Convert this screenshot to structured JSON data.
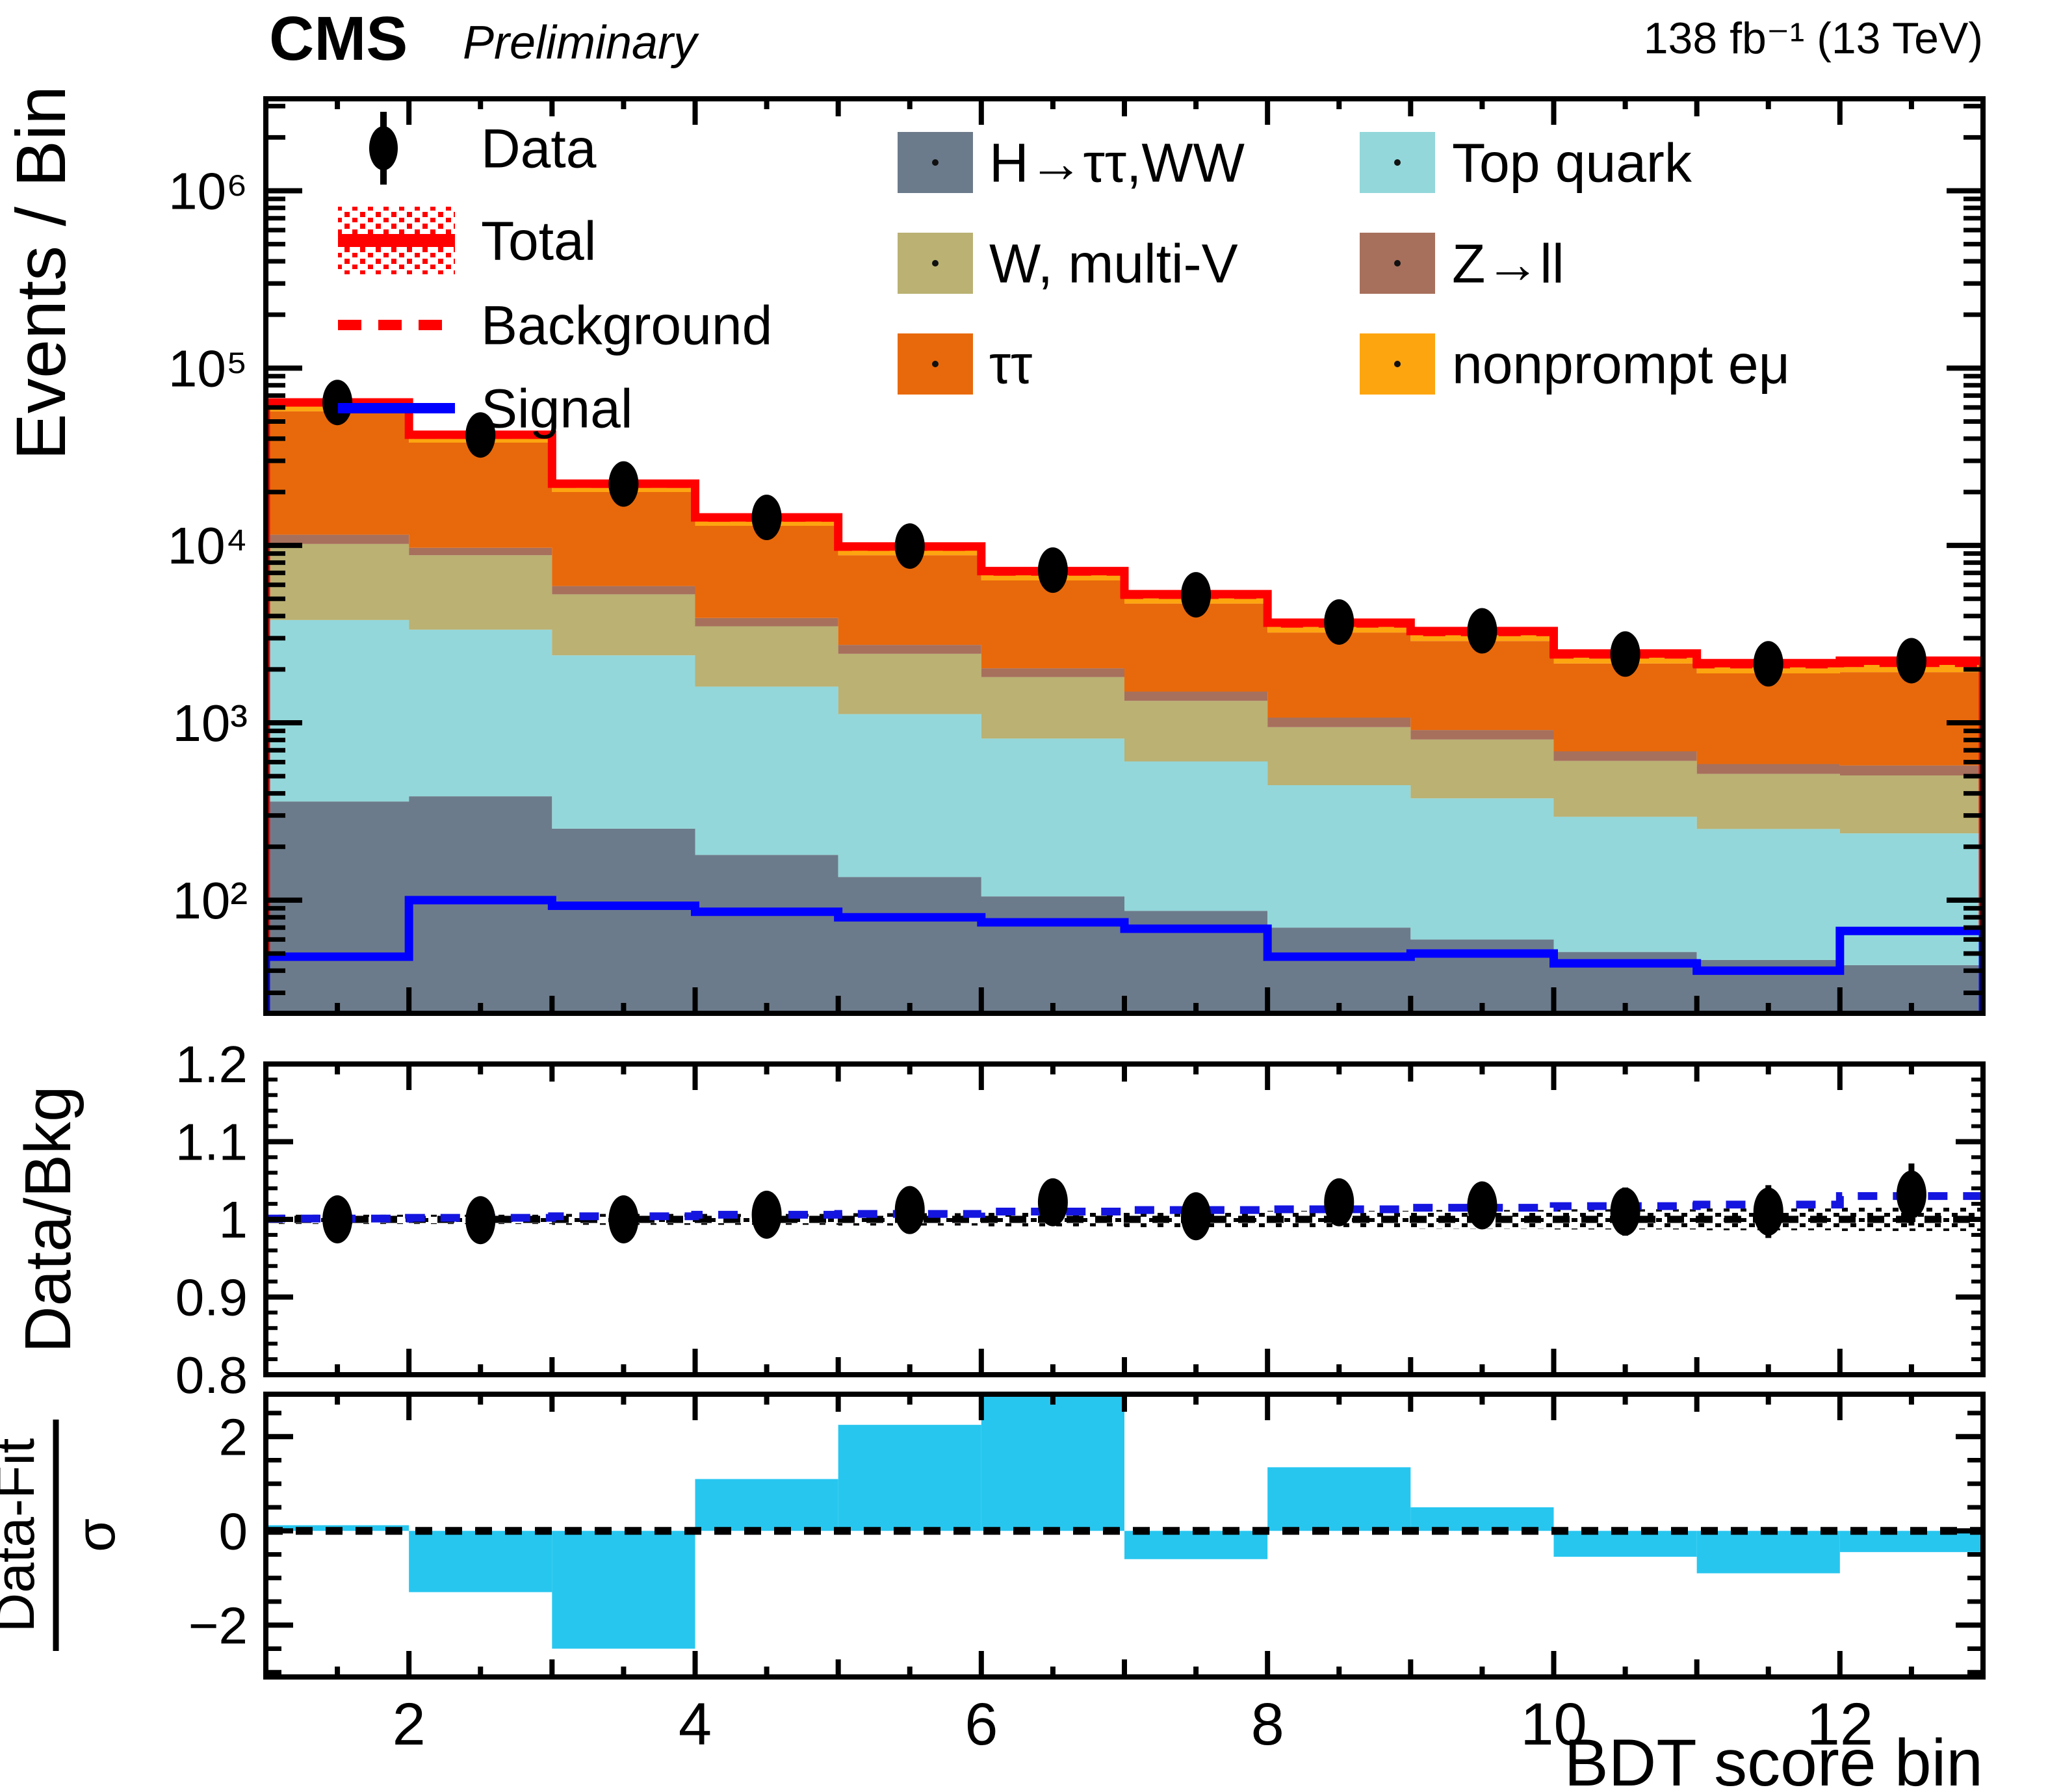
{
  "header": {
    "experiment": "CMS",
    "status": "Preliminary",
    "lumi": "138 fb⁻¹ (13 TeV)"
  },
  "axis_titles": {
    "main_y": "Events / Bin",
    "ratio_y": "Data/Bkg",
    "pull_y_num": "Data-Fit",
    "pull_y_den": "σ",
    "x": "BDT score bin"
  },
  "legend": {
    "data": "Data",
    "total": "Total",
    "background": "Background",
    "signal": "Signal"
  },
  "chart_data": {
    "type": "stacked-step-histogram+ratio+pull",
    "x": {
      "label": "BDT score bin",
      "min": 1,
      "max": 13,
      "bins": 12,
      "tick_labels": [
        2,
        4,
        6,
        8,
        10,
        12
      ]
    },
    "colors": {
      "higgs": "#6c7b8b",
      "top": "#93d7da",
      "wmv": "#bab173",
      "zll": "#a7705c",
      "tautau": "#e8690b",
      "nonprompt": "#fda50f",
      "total": "#ff0000",
      "signal": "#0000ff",
      "data": "#000000",
      "ratio_fit": "#1515e0",
      "pull_bar": "#27c6ef"
    },
    "series": [
      {
        "key": "higgs",
        "label": "H→ττ,WW",
        "color": "#6c7b8b"
      },
      {
        "key": "top",
        "label": "Top quark",
        "color": "#93d7da"
      },
      {
        "key": "wmv",
        "label": "W, multi-V",
        "color": "#bab173"
      },
      {
        "key": "zll",
        "label": "Z→ll",
        "color": "#a7705c"
      },
      {
        "key": "tautau",
        "label": "ττ",
        "color": "#e8690b"
      },
      {
        "key": "nonprompt",
        "label": "nonprompt eμ",
        "color": "#fda50f"
      }
    ],
    "main": {
      "ylabel": "Events / Bin",
      "yscale": "log",
      "ymin": 23,
      "ymax": 3300000,
      "y_ticks": [
        {
          "v": 100,
          "label": "10²"
        },
        {
          "v": 1000,
          "label": "10³"
        },
        {
          "v": 10000,
          "label": "10⁴"
        },
        {
          "v": 100000,
          "label": "10⁵"
        },
        {
          "v": 1000000,
          "label": "10⁶"
        }
      ],
      "stack_order_bottom_to_top": [
        "higgs",
        "top",
        "wmv",
        "zll",
        "tautau",
        "nonprompt"
      ],
      "stack_cumulative_tops": {
        "higgs": [
          360,
          385,
          253,
          180,
          135,
          105,
          87,
          70,
          60,
          51,
          46,
          43
        ],
        "top": [
          3800,
          3350,
          2400,
          1600,
          1120,
          815,
          605,
          445,
          375,
          295,
          252,
          238
        ],
        "wmv": [
          10200,
          8800,
          5300,
          3500,
          2450,
          1810,
          1330,
          945,
          805,
          610,
          515,
          505
        ],
        "zll": [
          11500,
          9700,
          5900,
          3900,
          2750,
          2030,
          1500,
          1070,
          910,
          690,
          585,
          575
        ],
        "tautau": [
          57000,
          38000,
          20000,
          12900,
          8800,
          6350,
          4700,
          3230,
          2890,
          2160,
          1900,
          1930
        ],
        "nonprompt": [
          64000,
          42000,
          22200,
          14300,
          9800,
          7100,
          5250,
          3620,
          3240,
          2420,
          2130,
          2170
        ]
      },
      "background": [
        64000,
        42000,
        22200,
        14300,
        9800,
        7100,
        5250,
        3620,
        3240,
        2420,
        2130,
        2170
      ],
      "total": [
        64060,
        42080,
        22290,
        14390,
        9870,
        7170,
        5310,
        3670,
        3290,
        2460,
        2170,
        2240
      ],
      "signal": [
        48,
        100,
        93,
        86,
        80,
        75,
        69,
        48,
        50,
        44,
        40,
        67
      ],
      "data": [
        64000,
        41960,
        22200,
        14390,
        9920,
        7260,
        5270,
        3700,
        3300,
        2440,
        2150,
        2240
      ]
    },
    "ratio": {
      "ylabel": "Data/Bkg",
      "ymin": 0.8,
      "ymax": 1.2,
      "y_ticks": [
        {
          "v": 0.8,
          "label": "0.8"
        },
        {
          "v": 0.9,
          "label": "0.9"
        },
        {
          "v": 1.0,
          "label": "1"
        },
        {
          "v": 1.1,
          "label": "1.1"
        },
        {
          "v": 1.2,
          "label": "1.2"
        }
      ],
      "points": [
        1.0,
        0.999,
        1.0,
        1.006,
        1.012,
        1.022,
        1.004,
        1.022,
        1.018,
        1.01,
        1.01,
        1.032
      ],
      "errors": [
        0.004,
        0.005,
        0.007,
        0.01,
        0.012,
        0.015,
        0.018,
        0.022,
        0.026,
        0.031,
        0.034,
        0.04
      ],
      "fit_line": [
        1.001,
        1.002,
        1.004,
        1.006,
        1.007,
        1.01,
        1.012,
        1.013,
        1.015,
        1.017,
        1.019,
        1.03
      ],
      "band_halfwidth": [
        0.006,
        0.006,
        0.007,
        0.007,
        0.008,
        0.009,
        0.01,
        0.011,
        0.012,
        0.013,
        0.014,
        0.015
      ]
    },
    "pull": {
      "ylabel": "(Data-Fit)/σ",
      "ymin": -3.1,
      "ymax": 2.9,
      "y_ticks": [
        {
          "v": -2,
          "label": "−2"
        },
        {
          "v": 0,
          "label": "0"
        },
        {
          "v": 2,
          "label": "2"
        }
      ],
      "values": [
        0.12,
        -1.3,
        -2.5,
        1.1,
        2.25,
        2.85,
        -0.6,
        1.35,
        0.5,
        -0.55,
        -0.9,
        -0.45
      ]
    }
  }
}
